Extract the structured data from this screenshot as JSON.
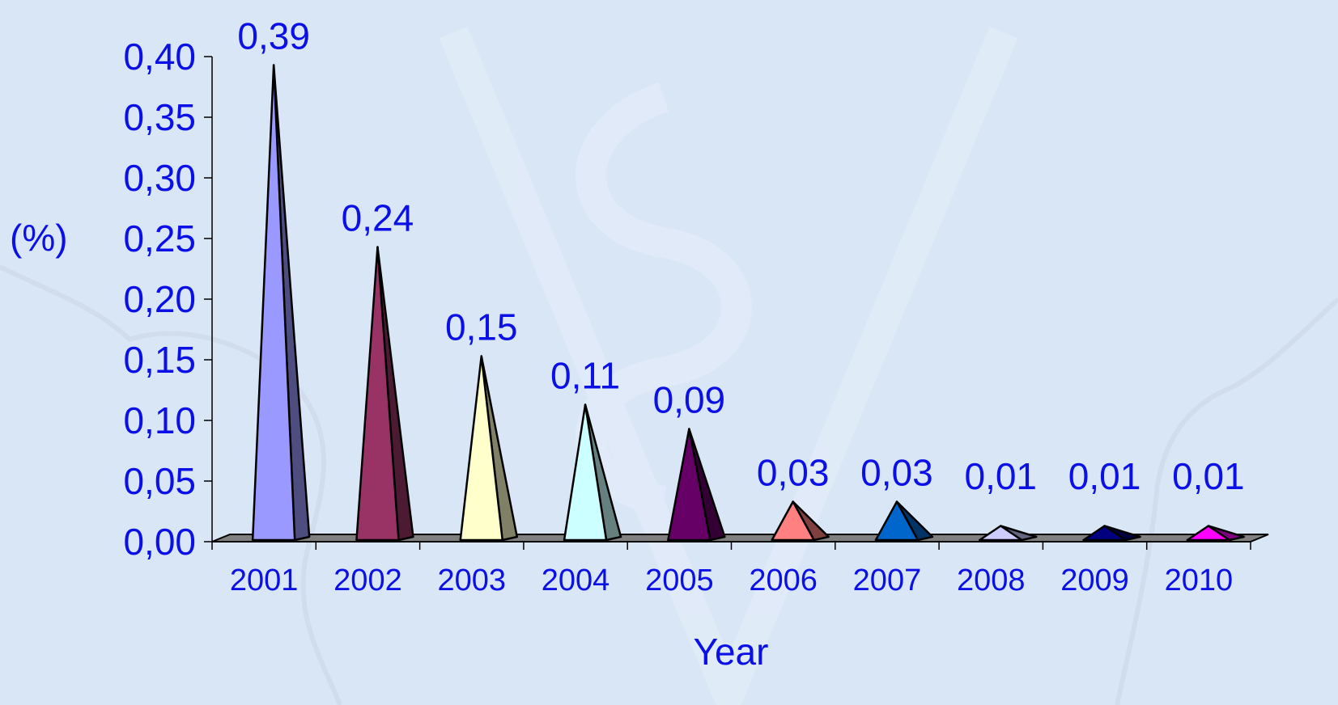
{
  "chart_data": {
    "type": "bar",
    "shape": "pyramid",
    "categories": [
      "2001",
      "2002",
      "2003",
      "2004",
      "2005",
      "2006",
      "2007",
      "2008",
      "2009",
      "2010"
    ],
    "values": [
      0.39,
      0.24,
      0.15,
      0.11,
      0.09,
      0.03,
      0.03,
      0.01,
      0.01,
      0.01
    ],
    "data_labels": [
      "0,39",
      "0,24",
      "0,15",
      "0,11",
      "0,09",
      "0,03",
      "0,03",
      "0,01",
      "0,01",
      "0,01"
    ],
    "colors": [
      "#9999ff",
      "#993366",
      "#ffffcc",
      "#ccffff",
      "#660066",
      "#ff8080",
      "#0066cc",
      "#ccccff",
      "#000080",
      "#ff00ff"
    ],
    "y_ticks": [
      0.0,
      0.05,
      0.1,
      0.15,
      0.2,
      0.25,
      0.3,
      0.35,
      0.4
    ],
    "y_tick_labels": [
      "0,00",
      "0,05",
      "0,10",
      "0,15",
      "0,20",
      "0,25",
      "0,30",
      "0,35",
      "0,40"
    ],
    "ylim": [
      0,
      0.4
    ],
    "ylabel": "(%)",
    "xlabel": "Year",
    "title": "",
    "grid": false,
    "legend": "none"
  },
  "colors": {
    "background": "#d9e6f6",
    "text": "#0a10e6",
    "floor": "#808080"
  }
}
